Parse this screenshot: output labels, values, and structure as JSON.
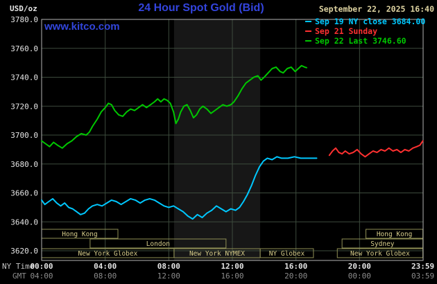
{
  "header": {
    "units": "USD/oz",
    "datetime": "September 22, 2025 16:40",
    "watermark": "www.kitco.com"
  },
  "colors": {
    "title": "#3344dd",
    "watermark": "#3246dc",
    "datetime": "#ddd2a0",
    "axis_text": "#e6e6e6",
    "axis_dim": "#c4c4c4",
    "gmt_text": "#8c8c8c",
    "grid": "#3d4b3d",
    "border": "#b4b4b4",
    "band": "#171717",
    "session": "#8f8f55",
    "session_text": "#d6cc8a"
  },
  "chart_data": {
    "type": "line",
    "title": "24 Hour Spot Gold (Bid)",
    "ylabel": "USD/oz",
    "xlabel": "NY Time",
    "ylim": [
      3613.3,
      3780
    ],
    "xlim_hours": [
      0,
      24
    ],
    "y_gridlines": [
      3620,
      3640,
      3660,
      3680,
      3700,
      3720,
      3740,
      3760,
      3780
    ],
    "x_gridline_hours": [
      4,
      8,
      12,
      16,
      20
    ],
    "highlight_band_hours": [
      8.33,
      13.75
    ],
    "series": [
      {
        "name": "sep19-ny-close",
        "legend": "Sep 19 NY close 3684.00",
        "color": "#00c8ff",
        "close_value": 3684.0,
        "points": [
          [
            0,
            3655
          ],
          [
            0.2,
            3652
          ],
          [
            0.45,
            3654
          ],
          [
            0.7,
            3656
          ],
          [
            0.95,
            3653
          ],
          [
            1.2,
            3651
          ],
          [
            1.45,
            3653
          ],
          [
            1.7,
            3650
          ],
          [
            1.95,
            3649
          ],
          [
            2.2,
            3647
          ],
          [
            2.45,
            3645
          ],
          [
            2.7,
            3646
          ],
          [
            2.95,
            3649
          ],
          [
            3.2,
            3651
          ],
          [
            3.5,
            3652
          ],
          [
            3.8,
            3651
          ],
          [
            4.1,
            3653
          ],
          [
            4.4,
            3655
          ],
          [
            4.7,
            3654
          ],
          [
            5,
            3652
          ],
          [
            5.3,
            3654
          ],
          [
            5.6,
            3656
          ],
          [
            5.9,
            3655
          ],
          [
            6.2,
            3653
          ],
          [
            6.5,
            3655
          ],
          [
            6.8,
            3656
          ],
          [
            7.1,
            3655
          ],
          [
            7.4,
            3653
          ],
          [
            7.7,
            3651
          ],
          [
            8,
            3650
          ],
          [
            8.3,
            3651
          ],
          [
            8.6,
            3649
          ],
          [
            8.9,
            3647
          ],
          [
            9.2,
            3644
          ],
          [
            9.5,
            3642
          ],
          [
            9.8,
            3645
          ],
          [
            10.1,
            3643
          ],
          [
            10.4,
            3646
          ],
          [
            10.7,
            3648
          ],
          [
            11,
            3651
          ],
          [
            11.3,
            3649
          ],
          [
            11.6,
            3647
          ],
          [
            11.9,
            3649
          ],
          [
            12.2,
            3648
          ],
          [
            12.45,
            3650
          ],
          [
            12.7,
            3654
          ],
          [
            12.95,
            3659
          ],
          [
            13.2,
            3665
          ],
          [
            13.45,
            3672
          ],
          [
            13.7,
            3678
          ],
          [
            13.95,
            3682
          ],
          [
            14.2,
            3684
          ],
          [
            14.5,
            3683
          ],
          [
            14.8,
            3685
          ],
          [
            15.1,
            3684
          ],
          [
            15.5,
            3684
          ],
          [
            15.9,
            3685
          ],
          [
            16.3,
            3684
          ],
          [
            16.7,
            3684
          ],
          [
            17.1,
            3684
          ],
          [
            17.3,
            3684
          ]
        ]
      },
      {
        "name": "sep21-sunday",
        "legend": "Sep 21 Sunday",
        "color": "#ff3030",
        "points": [
          [
            18.1,
            3686
          ],
          [
            18.3,
            3689
          ],
          [
            18.5,
            3691
          ],
          [
            18.7,
            3688
          ],
          [
            18.9,
            3687
          ],
          [
            19.1,
            3689
          ],
          [
            19.35,
            3687
          ],
          [
            19.6,
            3688
          ],
          [
            19.85,
            3690
          ],
          [
            20.1,
            3687
          ],
          [
            20.35,
            3685
          ],
          [
            20.6,
            3687
          ],
          [
            20.85,
            3689
          ],
          [
            21.1,
            3688
          ],
          [
            21.35,
            3690
          ],
          [
            21.6,
            3689
          ],
          [
            21.85,
            3691
          ],
          [
            22.1,
            3689
          ],
          [
            22.35,
            3690
          ],
          [
            22.6,
            3688
          ],
          [
            22.85,
            3690
          ],
          [
            23.1,
            3689
          ],
          [
            23.35,
            3691
          ],
          [
            23.6,
            3692
          ],
          [
            23.8,
            3693
          ],
          [
            23.983,
            3696
          ]
        ]
      },
      {
        "name": "sep22-last",
        "legend": "Sep 22 Last 3746.60",
        "color": "#00c800",
        "last_value": 3746.6,
        "points": [
          [
            0,
            3696
          ],
          [
            0.25,
            3694
          ],
          [
            0.5,
            3692
          ],
          [
            0.75,
            3695
          ],
          [
            1,
            3693
          ],
          [
            1.3,
            3691
          ],
          [
            1.6,
            3694
          ],
          [
            1.9,
            3696
          ],
          [
            2.2,
            3699
          ],
          [
            2.5,
            3701
          ],
          [
            2.8,
            3700
          ],
          [
            3,
            3702
          ],
          [
            3.2,
            3706
          ],
          [
            3.5,
            3711
          ],
          [
            3.75,
            3716
          ],
          [
            4,
            3719
          ],
          [
            4.2,
            3722
          ],
          [
            4.4,
            3721
          ],
          [
            4.6,
            3717
          ],
          [
            4.85,
            3714
          ],
          [
            5.1,
            3713
          ],
          [
            5.35,
            3716
          ],
          [
            5.6,
            3718
          ],
          [
            5.85,
            3717
          ],
          [
            6.1,
            3719
          ],
          [
            6.35,
            3721
          ],
          [
            6.6,
            3719
          ],
          [
            6.85,
            3721
          ],
          [
            7.1,
            3723
          ],
          [
            7.3,
            3725
          ],
          [
            7.5,
            3723
          ],
          [
            7.7,
            3725
          ],
          [
            7.9,
            3724
          ],
          [
            8.1,
            3722
          ],
          [
            8.3,
            3716
          ],
          [
            8.45,
            3708
          ],
          [
            8.6,
            3711
          ],
          [
            8.75,
            3716
          ],
          [
            8.95,
            3720
          ],
          [
            9.15,
            3721
          ],
          [
            9.35,
            3717
          ],
          [
            9.55,
            3712
          ],
          [
            9.75,
            3714
          ],
          [
            9.95,
            3718
          ],
          [
            10.15,
            3720
          ],
          [
            10.4,
            3718
          ],
          [
            10.65,
            3715
          ],
          [
            10.9,
            3717
          ],
          [
            11.15,
            3719
          ],
          [
            11.4,
            3721
          ],
          [
            11.65,
            3720
          ],
          [
            11.9,
            3721
          ],
          [
            12.1,
            3723
          ],
          [
            12.35,
            3727
          ],
          [
            12.6,
            3732
          ],
          [
            12.85,
            3736
          ],
          [
            13.1,
            3738
          ],
          [
            13.35,
            3740
          ],
          [
            13.6,
            3741
          ],
          [
            13.8,
            3738
          ],
          [
            14,
            3740
          ],
          [
            14.25,
            3743
          ],
          [
            14.5,
            3746
          ],
          [
            14.75,
            3747
          ],
          [
            15,
            3744
          ],
          [
            15.2,
            3743
          ],
          [
            15.45,
            3746
          ],
          [
            15.7,
            3747
          ],
          [
            15.95,
            3744
          ],
          [
            16.15,
            3746
          ],
          [
            16.35,
            3748
          ],
          [
            16.55,
            3747
          ],
          [
            16.67,
            3746.6
          ]
        ]
      }
    ],
    "x_axis": {
      "ny_label": "NY Time",
      "gmt_label": "GMT",
      "ticks": [
        {
          "hour": 0,
          "ny": "00:00",
          "gmt": "04:00"
        },
        {
          "hour": 4,
          "ny": "04:00",
          "gmt": "08:00"
        },
        {
          "hour": 8,
          "ny": "08:00",
          "gmt": "12:00"
        },
        {
          "hour": 12,
          "ny": "12:00",
          "gmt": "16:00"
        },
        {
          "hour": 16,
          "ny": "16:00",
          "gmt": "20:00"
        },
        {
          "hour": 20,
          "ny": "20:00",
          "gmt": "00:00"
        },
        {
          "hour": 23.983,
          "ny": "23:59",
          "gmt": "03:59"
        }
      ]
    },
    "sessions": [
      {
        "row": 0,
        "label": "Hong Kong",
        "start": 0,
        "end": 4.8
      },
      {
        "row": 0,
        "label": "Hong Kong",
        "start": 20.4,
        "end": 23.983
      },
      {
        "row": 1,
        "label": "London",
        "start": 3.05,
        "end": 11.6
      },
      {
        "row": 1,
        "label": "Sydney",
        "start": 18.9,
        "end": 23.983
      },
      {
        "row": 2,
        "label": "New York Globex",
        "start": 0,
        "end": 8.33
      },
      {
        "row": 2,
        "label": "New York NYMEX",
        "start": 8.33,
        "end": 13.75
      },
      {
        "row": 2,
        "label": "NY Globex",
        "start": 13.75,
        "end": 17.1
      },
      {
        "row": 2,
        "label": "New York Globex",
        "start": 18.6,
        "end": 23.983
      }
    ]
  }
}
